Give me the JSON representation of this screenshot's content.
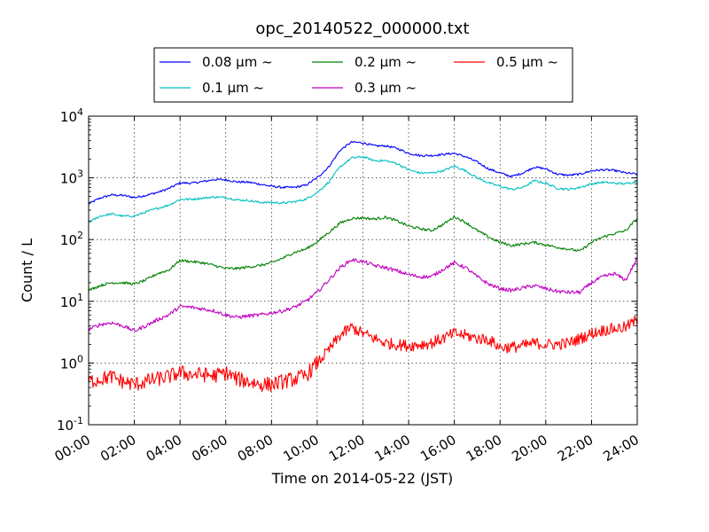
{
  "chart_data": {
    "type": "line",
    "title": "opc_20140522_000000.txt",
    "xlabel": "Time on 2014-05-22 (JST)",
    "ylabel": "Count / L",
    "x_unit": "hour",
    "xlim": [
      0,
      24
    ],
    "ylim": [
      0.1,
      10000
    ],
    "yscale": "log",
    "grid": true,
    "legend_position": "top, above plot, 3 columns",
    "x_ticks": [
      {
        "value": 0,
        "label": "00:00"
      },
      {
        "value": 2,
        "label": "02:00"
      },
      {
        "value": 4,
        "label": "04:00"
      },
      {
        "value": 6,
        "label": "06:00"
      },
      {
        "value": 8,
        "label": "08:00"
      },
      {
        "value": 10,
        "label": "10:00"
      },
      {
        "value": 12,
        "label": "12:00"
      },
      {
        "value": 14,
        "label": "14:00"
      },
      {
        "value": 16,
        "label": "16:00"
      },
      {
        "value": 18,
        "label": "18:00"
      },
      {
        "value": 20,
        "label": "20:00"
      },
      {
        "value": 22,
        "label": "22:00"
      },
      {
        "value": 24,
        "label": "24:00"
      }
    ],
    "y_ticks": [
      {
        "value": 0.1,
        "base": "10",
        "exp": "-1"
      },
      {
        "value": 1,
        "base": "10",
        "exp": "0"
      },
      {
        "value": 10,
        "base": "10",
        "exp": "1"
      },
      {
        "value": 100,
        "base": "10",
        "exp": "2"
      },
      {
        "value": 1000,
        "base": "10",
        "exp": "3"
      },
      {
        "value": 10000,
        "base": "10",
        "exp": "4"
      }
    ],
    "series": [
      {
        "name": "0.08 μm ~",
        "color": "#0000ff",
        "x": [
          0,
          0.5,
          1,
          1.5,
          2,
          2.5,
          3,
          3.5,
          4,
          4.5,
          5,
          5.5,
          6,
          6.5,
          7,
          7.5,
          8,
          8.5,
          9,
          9.5,
          10,
          10.5,
          11,
          11.5,
          12,
          12.5,
          13,
          13.5,
          14,
          14.5,
          15,
          15.5,
          16,
          16.5,
          17,
          17.5,
          18,
          18.5,
          19,
          19.5,
          20,
          20.5,
          21,
          21.5,
          22,
          22.5,
          23,
          23.5,
          24
        ],
        "y": [
          380,
          470,
          530,
          520,
          480,
          520,
          580,
          670,
          830,
          820,
          870,
          940,
          930,
          860,
          850,
          790,
          730,
          700,
          700,
          760,
          1000,
          1500,
          2800,
          3800,
          3700,
          3300,
          3300,
          3000,
          2500,
          2300,
          2300,
          2400,
          2500,
          2200,
          1800,
          1400,
          1200,
          1050,
          1200,
          1500,
          1400,
          1150,
          1100,
          1150,
          1300,
          1350,
          1320,
          1200,
          1150
        ]
      },
      {
        "name": "0.1 μm ~",
        "color": "#00bfbf",
        "x": [
          0,
          0.5,
          1,
          1.5,
          2,
          2.5,
          3,
          3.5,
          4,
          4.5,
          5,
          5.5,
          6,
          6.5,
          7,
          7.5,
          8,
          8.5,
          9,
          9.5,
          10,
          10.5,
          11,
          11.5,
          12,
          12.5,
          13,
          13.5,
          14,
          14.5,
          15,
          15.5,
          16,
          16.5,
          17,
          17.5,
          18,
          18.5,
          19,
          19.5,
          20,
          20.5,
          21,
          21.5,
          22,
          22.5,
          23,
          23.5,
          24
        ],
        "y": [
          190,
          240,
          260,
          240,
          240,
          280,
          320,
          360,
          450,
          450,
          470,
          490,
          480,
          440,
          430,
          400,
          400,
          390,
          410,
          450,
          580,
          850,
          1500,
          2100,
          2200,
          1900,
          1900,
          1700,
          1350,
          1200,
          1200,
          1300,
          1550,
          1300,
          1000,
          830,
          730,
          650,
          700,
          900,
          820,
          680,
          650,
          700,
          800,
          850,
          820,
          800,
          880
        ]
      },
      {
        "name": "0.2 μm ~",
        "color": "#008000",
        "x": [
          0,
          0.5,
          1,
          1.5,
          2,
          2.5,
          3,
          3.5,
          4,
          4.5,
          5,
          5.5,
          6,
          6.5,
          7,
          7.5,
          8,
          8.5,
          9,
          9.5,
          10,
          10.5,
          11,
          11.5,
          12,
          12.5,
          13,
          13.5,
          14,
          14.5,
          15,
          15.5,
          16,
          16.5,
          17,
          17.5,
          18,
          18.5,
          19,
          19.5,
          20,
          20.5,
          21,
          21.5,
          22,
          22.5,
          23,
          23.5,
          24
        ],
        "y": [
          15,
          18,
          20,
          20,
          19,
          22,
          28,
          32,
          46,
          44,
          42,
          38,
          34,
          34,
          36,
          38,
          42,
          50,
          62,
          70,
          92,
          130,
          185,
          220,
          225,
          215,
          230,
          200,
          165,
          150,
          140,
          175,
          235,
          190,
          140,
          110,
          90,
          80,
          85,
          90,
          82,
          75,
          70,
          65,
          90,
          110,
          125,
          140,
          220
        ]
      },
      {
        "name": "0.3 μm ~",
        "color": "#bf00bf",
        "x": [
          0,
          0.5,
          1,
          1.5,
          2,
          2.5,
          3,
          3.5,
          4,
          4.5,
          5,
          5.5,
          6,
          6.5,
          7,
          7.5,
          8,
          8.5,
          9,
          9.5,
          10,
          10.5,
          11,
          11.5,
          12,
          12.5,
          13,
          13.5,
          14,
          14.5,
          15,
          15.5,
          16,
          16.5,
          17,
          17.5,
          18,
          18.5,
          19,
          19.5,
          20,
          20.5,
          21,
          21.5,
          22,
          22.5,
          23,
          23.5,
          24
        ],
        "y": [
          3.5,
          4.2,
          4.5,
          4.0,
          3.3,
          4.0,
          5.0,
          6.0,
          8.2,
          8.0,
          7.5,
          7.0,
          6.0,
          5.5,
          5.8,
          6.0,
          6.5,
          7.0,
          8.0,
          10.0,
          14.0,
          22.0,
          35.0,
          47.0,
          44.0,
          38.0,
          35.0,
          31.0,
          27.0,
          25.0,
          25.0,
          33.0,
          42.0,
          35.0,
          25.0,
          19.0,
          16.0,
          15.0,
          16.5,
          18.0,
          16.0,
          14.5,
          14.0,
          14.0,
          20.0,
          25.0,
          28.0,
          22.0,
          50.0
        ]
      },
      {
        "name": "0.5 μm ~",
        "color": "#ff0000",
        "x": [
          0,
          0.5,
          1,
          1.5,
          2,
          2.5,
          3,
          3.5,
          4,
          4.5,
          5,
          5.5,
          6,
          6.5,
          7,
          7.5,
          8,
          8.5,
          9,
          9.5,
          10,
          10.5,
          11,
          11.5,
          12,
          12.5,
          13,
          13.5,
          14,
          14.5,
          15,
          15.5,
          16,
          16.5,
          17,
          17.5,
          18,
          18.5,
          19,
          19.5,
          20,
          20.5,
          21,
          21.5,
          22,
          22.5,
          23,
          23.5,
          24
        ],
        "y": [
          0.5,
          0.55,
          0.6,
          0.5,
          0.45,
          0.5,
          0.55,
          0.6,
          0.7,
          0.65,
          0.65,
          0.62,
          0.7,
          0.55,
          0.5,
          0.45,
          0.45,
          0.5,
          0.55,
          0.62,
          1.0,
          1.6,
          2.8,
          3.8,
          3.0,
          2.5,
          2.1,
          2.0,
          1.9,
          2.0,
          2.1,
          2.5,
          3.0,
          2.8,
          2.5,
          2.4,
          1.8,
          1.8,
          1.9,
          2.1,
          2.0,
          2.0,
          2.1,
          2.5,
          3.0,
          3.4,
          3.6,
          3.8,
          5.0
        ]
      }
    ]
  }
}
